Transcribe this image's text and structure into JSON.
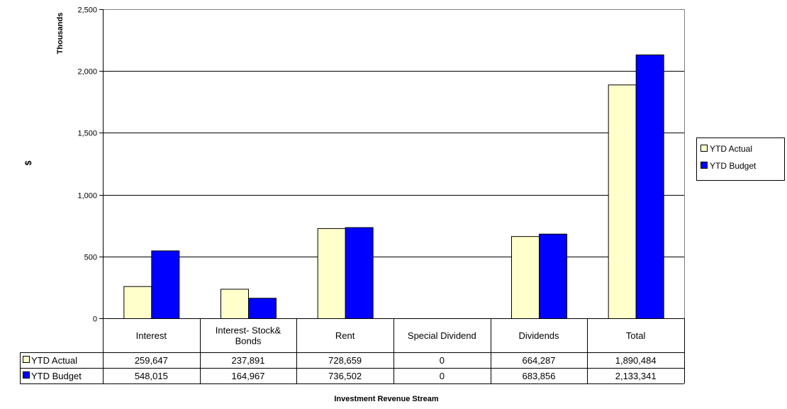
{
  "chart_data": {
    "type": "bar",
    "ylabel_top": "Thousands",
    "ylabel": "$",
    "xlabel": "Investment Revenue Stream",
    "ylim": [
      0,
      2500
    ],
    "yticks": [
      0,
      500,
      1000,
      1500,
      2000,
      2500
    ],
    "ytick_labels": [
      "0",
      "500",
      "1,000",
      "1,500",
      "2,000",
      "2,500"
    ],
    "grid": true,
    "legend_position": "right",
    "categories": [
      "Interest",
      "Interest- Stock& Bonds",
      "Rent",
      "Special Dividend",
      "Dividends",
      "Total"
    ],
    "series": [
      {
        "name": "YTD Actual",
        "color": "#ffffcc",
        "values": [
          259.647,
          237.891,
          728.659,
          0,
          664.287,
          1890.484
        ],
        "table_values": [
          "259,647",
          "237,891",
          "728,659",
          "0",
          "664,287",
          "1,890,484"
        ]
      },
      {
        "name": "YTD Budget",
        "color": "#0000ff",
        "values": [
          548.015,
          164.967,
          736.502,
          0,
          683.856,
          2133.341
        ],
        "table_values": [
          "548,015",
          "164,967",
          "736,502",
          "0",
          "683,856",
          "2,133,341"
        ]
      }
    ]
  }
}
